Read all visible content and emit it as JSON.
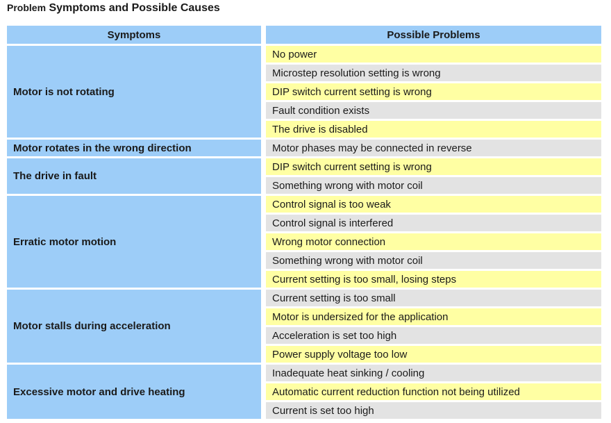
{
  "page": {
    "title": "Problem Symptoms and Possible Causes",
    "title_parts": [
      "Problem",
      "Symptoms and Possible Causes"
    ]
  },
  "colors": {
    "header_bg": "#9DCDF8",
    "symptom_bg": "#9DCDF8",
    "cause_yellow": "#FFFFA3",
    "cause_gray": "#E3E3E3",
    "text": "#1A1A1A"
  },
  "table": {
    "headers": [
      "Symptoms",
      "Possible Problems"
    ],
    "sections": [
      {
        "symptom": "Motor is not rotating",
        "causes": [
          "No power",
          "Microstep resolution setting is wrong",
          "DIP switch current setting is wrong",
          "Fault condition exists",
          "The drive is disabled"
        ]
      },
      {
        "symptom": "Motor rotates in the wrong direction",
        "causes": [
          "Motor phases may be connected in reverse"
        ]
      },
      {
        "symptom": "The drive in fault",
        "causes": [
          "DIP switch current setting is wrong",
          "Something wrong with motor coil"
        ]
      },
      {
        "symptom": "Erratic motor motion",
        "causes": [
          "Control signal is too weak",
          "Control signal is interfered",
          "Wrong motor connection",
          "Something wrong with motor coil",
          "Current setting is too small, losing steps"
        ]
      },
      {
        "symptom": "Motor stalls during acceleration",
        "causes": [
          "Current setting is too small",
          "Motor is undersized for the application",
          "Acceleration is set too high",
          "Power supply voltage too low"
        ]
      },
      {
        "symptom": "Excessive motor and drive heating",
        "causes": [
          "Inadequate heat sinking / cooling",
          "Automatic current reduction function not being utilized",
          "Current is set too high"
        ]
      }
    ]
  }
}
